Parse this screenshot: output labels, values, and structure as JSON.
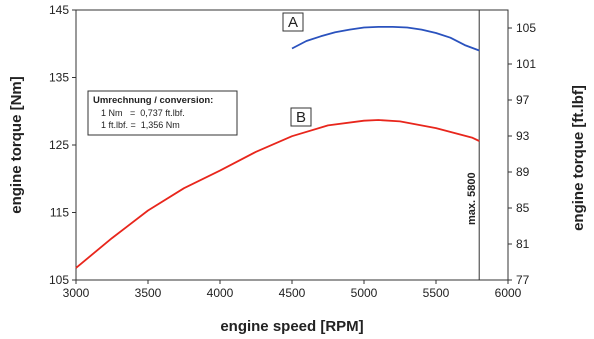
{
  "chart_data": {
    "type": "line",
    "xlabel": "engine speed [RPM]",
    "ylabel": "engine torque [Nm]",
    "y2label": "engine torque [ft.lbf]",
    "xlim": [
      3000,
      6000
    ],
    "ylim": [
      105,
      145
    ],
    "y2lim": [
      77,
      107
    ],
    "x_ticks": [
      "3000",
      "3500",
      "4000",
      "4500",
      "5000",
      "5500",
      "6000"
    ],
    "y_ticks": [
      "105",
      "115",
      "125",
      "135",
      "145"
    ],
    "y2_ticks": [
      "77",
      "81",
      "85",
      "89",
      "93",
      "97",
      "101",
      "105"
    ],
    "grid": false,
    "series": [
      {
        "name": "A",
        "color": "#2a52be",
        "x": [
          4500,
          4600,
          4700,
          4800,
          4900,
          5000,
          5100,
          5200,
          5300,
          5400,
          5500,
          5600,
          5700,
          5800
        ],
        "y": [
          139.3,
          140.4,
          141.1,
          141.7,
          142.1,
          142.4,
          142.5,
          142.5,
          142.4,
          142.1,
          141.6,
          140.9,
          139.8,
          139.0
        ]
      },
      {
        "name": "B",
        "color": "#e8261c",
        "x": [
          3000,
          3250,
          3500,
          3750,
          4000,
          4250,
          4500,
          4750,
          5000,
          5100,
          5250,
          5500,
          5750,
          5800
        ],
        "y": [
          106.8,
          111.2,
          115.3,
          118.6,
          121.2,
          124.0,
          126.3,
          127.9,
          128.6,
          128.7,
          128.5,
          127.5,
          126.1,
          125.6
        ]
      }
    ],
    "annotations": {
      "vline_x": 5800,
      "vline_label": "max. 5800",
      "conversion_title": "Umrechnung / conversion:",
      "conversion_line1": "1 Nm   =  0,737 ft.lbf.",
      "conversion_line2": "1 ft.lbf. =  1,356 Nm"
    }
  }
}
